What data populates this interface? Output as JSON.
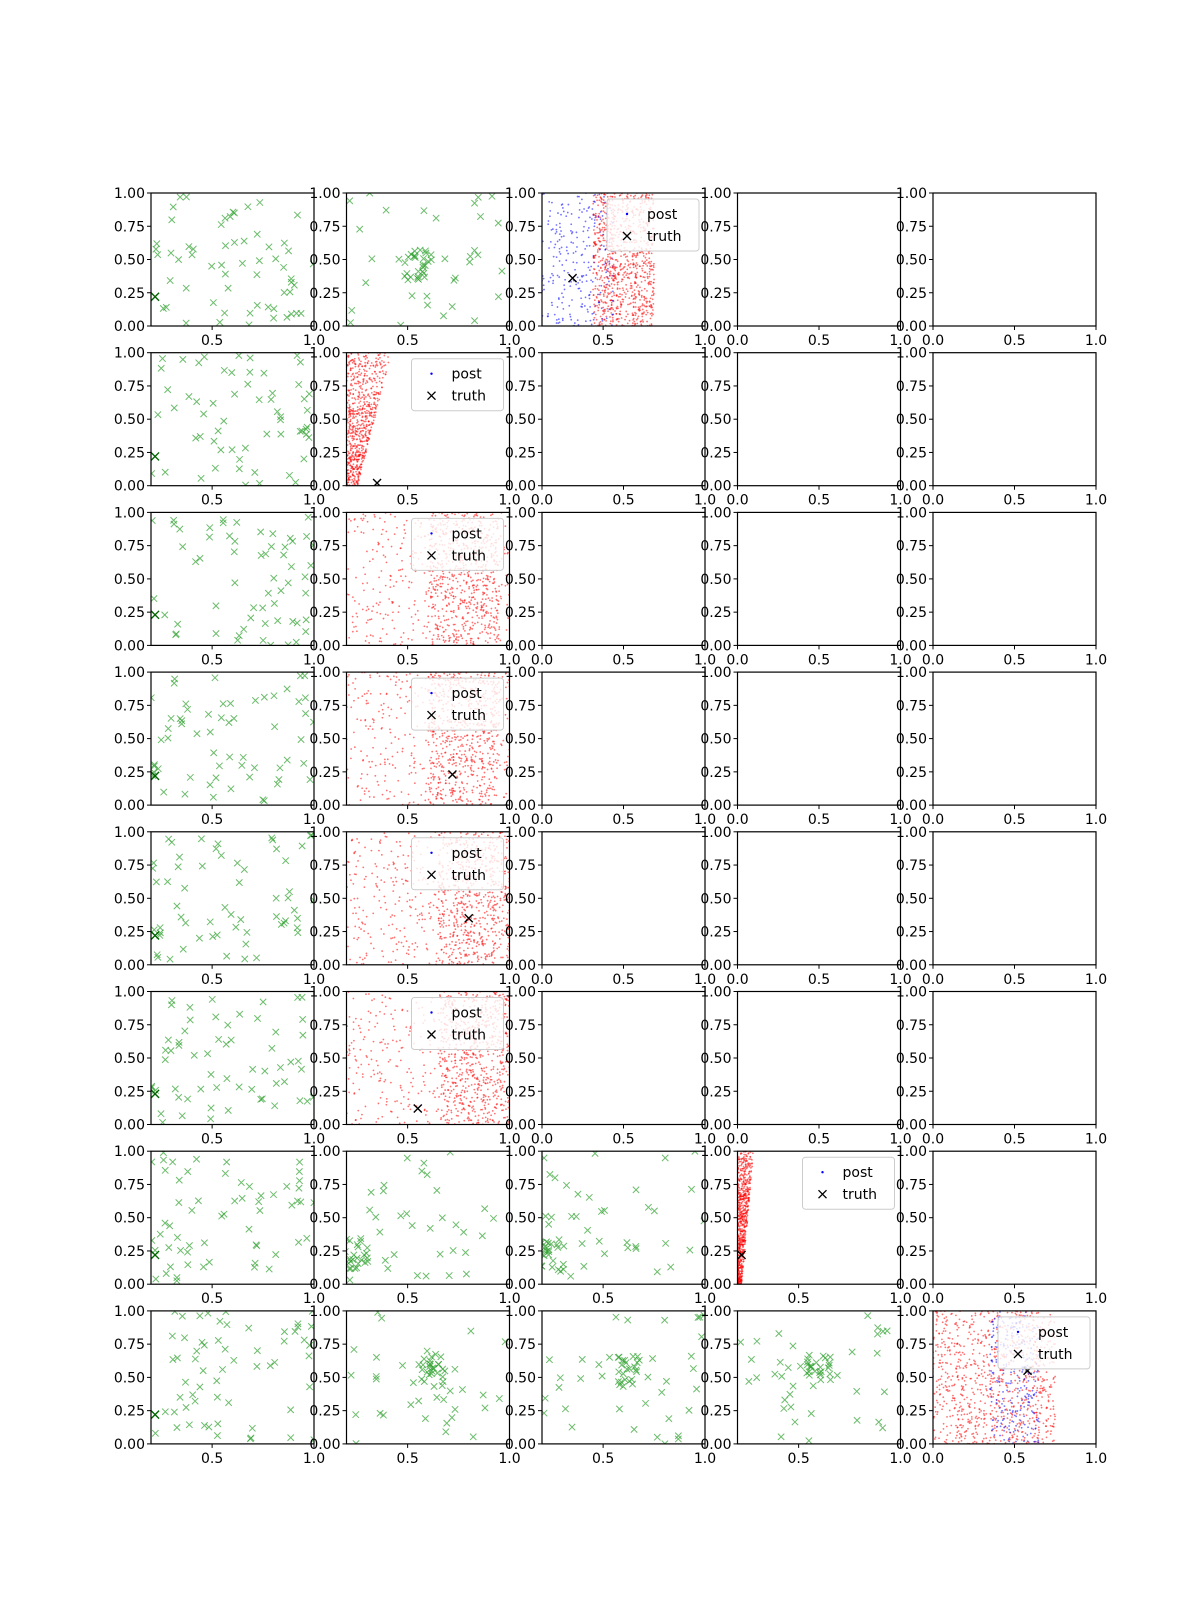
{
  "figure": {
    "rows": 8,
    "cols": 5,
    "colors": {
      "green_marker": "#2ca02c",
      "post_red": "#ff0000",
      "post_blue": "#0000ff",
      "truth": "#000000",
      "axes": "#000000"
    },
    "axis_ticks": {
      "y_labels": [
        "0.00",
        "0.25",
        "0.50",
        "0.75",
        "1.00"
      ],
      "x_labels_full": [
        "0.0",
        "0.5",
        "1.0"
      ],
      "x_labels_trunc": [
        "0.5",
        "1.0"
      ]
    },
    "legend_labels": {
      "post": "post",
      "truth": "truth"
    }
  },
  "chart_data": {
    "type": "scatter",
    "title": "",
    "xlim": [
      0,
      1
    ],
    "ylim": [
      0,
      1
    ],
    "grid": false,
    "panels": [
      {
        "id": "r0c0",
        "row": 0,
        "col": 0,
        "kind": "points",
        "xlim": [
          0.2,
          1.0
        ],
        "truth": [
          0.22,
          0.22
        ],
        "seed": 101
      },
      {
        "id": "r0c1",
        "row": 0,
        "col": 1,
        "kind": "points",
        "xlim": [
          0.2,
          1.0
        ],
        "seed": 102,
        "cluster": [
          0.55,
          0.45
        ]
      },
      {
        "id": "r0c2",
        "row": 0,
        "col": 2,
        "kind": "posterior",
        "xlim": [
          0.2,
          1.0
        ],
        "truth": [
          0.35,
          0.36
        ],
        "legend": true,
        "legend_pos": "upper-right",
        "seed": 103,
        "red_range": [
          0.45,
          0.75
        ],
        "blue_range": [
          0.2,
          0.55
        ]
      },
      {
        "id": "r0c3",
        "row": 0,
        "col": 3,
        "kind": "empty",
        "xlim": [
          0,
          1
        ]
      },
      {
        "id": "r0c4",
        "row": 0,
        "col": 4,
        "kind": "empty",
        "xlim": [
          0,
          1
        ]
      },
      {
        "id": "r1c0",
        "row": 1,
        "col": 0,
        "kind": "points",
        "xlim": [
          0.2,
          1.0
        ],
        "truth": [
          0.22,
          0.22
        ],
        "seed": 111
      },
      {
        "id": "r1c1",
        "row": 1,
        "col": 1,
        "kind": "posterior",
        "xlim": [
          0.2,
          1.0
        ],
        "truth": [
          0.35,
          0.02
        ],
        "legend": true,
        "legend_pos": "upper-right",
        "seed": 112,
        "red_range": [
          0.2,
          0.42
        ],
        "band": true
      },
      {
        "id": "r1c2",
        "row": 1,
        "col": 2,
        "kind": "empty",
        "xlim": [
          0,
          1
        ]
      },
      {
        "id": "r1c3",
        "row": 1,
        "col": 3,
        "kind": "empty",
        "xlim": [
          0,
          1
        ]
      },
      {
        "id": "r1c4",
        "row": 1,
        "col": 4,
        "kind": "empty",
        "xlim": [
          0,
          1
        ]
      },
      {
        "id": "r2c0",
        "row": 2,
        "col": 0,
        "kind": "points",
        "xlim": [
          0.2,
          1.0
        ],
        "truth": [
          0.22,
          0.23
        ],
        "seed": 121
      },
      {
        "id": "r2c1",
        "row": 2,
        "col": 1,
        "kind": "posterior",
        "xlim": [
          0.2,
          1.0
        ],
        "legend": true,
        "legend_pos": "upper-right",
        "seed": 122,
        "red_range": [
          0.2,
          1.0
        ],
        "dense": [
          0.6,
          0.95
        ]
      },
      {
        "id": "r2c2",
        "row": 2,
        "col": 2,
        "kind": "empty",
        "xlim": [
          0,
          1
        ]
      },
      {
        "id": "r2c3",
        "row": 2,
        "col": 3,
        "kind": "empty",
        "xlim": [
          0,
          1
        ]
      },
      {
        "id": "r2c4",
        "row": 2,
        "col": 4,
        "kind": "empty",
        "xlim": [
          0,
          1
        ]
      },
      {
        "id": "r3c0",
        "row": 3,
        "col": 0,
        "kind": "points",
        "xlim": [
          0.2,
          1.0
        ],
        "truth": [
          0.22,
          0.22
        ],
        "seed": 131
      },
      {
        "id": "r3c1",
        "row": 3,
        "col": 1,
        "kind": "posterior",
        "xlim": [
          0.2,
          1.0
        ],
        "truth": [
          0.72,
          0.23
        ],
        "legend": true,
        "legend_pos": "upper-right",
        "seed": 132,
        "red_range": [
          0.2,
          1.0
        ],
        "dense": [
          0.6,
          0.95
        ]
      },
      {
        "id": "r3c2",
        "row": 3,
        "col": 2,
        "kind": "empty",
        "xlim": [
          0,
          1
        ]
      },
      {
        "id": "r3c3",
        "row": 3,
        "col": 3,
        "kind": "empty",
        "xlim": [
          0,
          1
        ]
      },
      {
        "id": "r3c4",
        "row": 3,
        "col": 4,
        "kind": "empty",
        "xlim": [
          0,
          1
        ]
      },
      {
        "id": "r4c0",
        "row": 4,
        "col": 0,
        "kind": "points",
        "xlim": [
          0.2,
          1.0
        ],
        "truth": [
          0.22,
          0.22
        ],
        "seed": 141
      },
      {
        "id": "r4c1",
        "row": 4,
        "col": 1,
        "kind": "posterior",
        "xlim": [
          0.2,
          1.0
        ],
        "truth": [
          0.8,
          0.35
        ],
        "legend": true,
        "legend_pos": "upper-right",
        "seed": 142,
        "red_range": [
          0.2,
          1.0
        ],
        "dense": [
          0.65,
          1.0
        ]
      },
      {
        "id": "r4c2",
        "row": 4,
        "col": 2,
        "kind": "empty",
        "xlim": [
          0,
          1
        ]
      },
      {
        "id": "r4c3",
        "row": 4,
        "col": 3,
        "kind": "empty",
        "xlim": [
          0,
          1
        ]
      },
      {
        "id": "r4c4",
        "row": 4,
        "col": 4,
        "kind": "empty",
        "xlim": [
          0,
          1
        ]
      },
      {
        "id": "r5c0",
        "row": 5,
        "col": 0,
        "kind": "points",
        "xlim": [
          0.2,
          1.0
        ],
        "truth": [
          0.22,
          0.23
        ],
        "seed": 151
      },
      {
        "id": "r5c1",
        "row": 5,
        "col": 1,
        "kind": "posterior",
        "xlim": [
          0.2,
          1.0
        ],
        "truth": [
          0.55,
          0.12
        ],
        "legend": true,
        "legend_pos": "upper-right",
        "seed": 152,
        "red_range": [
          0.2,
          1.0
        ],
        "dense": [
          0.65,
          1.0
        ]
      },
      {
        "id": "r5c2",
        "row": 5,
        "col": 2,
        "kind": "empty",
        "xlim": [
          0,
          1
        ]
      },
      {
        "id": "r5c3",
        "row": 5,
        "col": 3,
        "kind": "empty",
        "xlim": [
          0,
          1
        ]
      },
      {
        "id": "r5c4",
        "row": 5,
        "col": 4,
        "kind": "empty",
        "xlim": [
          0,
          1
        ]
      },
      {
        "id": "r6c0",
        "row": 6,
        "col": 0,
        "kind": "points",
        "xlim": [
          0.2,
          1.0
        ],
        "truth": [
          0.22,
          0.22
        ],
        "seed": 161
      },
      {
        "id": "r6c1",
        "row": 6,
        "col": 1,
        "kind": "points",
        "xlim": [
          0.2,
          1.0
        ],
        "seed": 162,
        "cluster": [
          0.24,
          0.22
        ]
      },
      {
        "id": "r6c2",
        "row": 6,
        "col": 2,
        "kind": "points",
        "xlim": [
          0.2,
          1.0
        ],
        "seed": 163,
        "cluster": [
          0.24,
          0.22
        ]
      },
      {
        "id": "r6c3",
        "row": 6,
        "col": 3,
        "kind": "posterior",
        "xlim": [
          0.2,
          1.0
        ],
        "truth": [
          0.22,
          0.22
        ],
        "legend": true,
        "legend_pos": "upper-right",
        "seed": 164,
        "red_range": [
          0.2,
          0.28
        ],
        "band": true
      },
      {
        "id": "r6c4",
        "row": 6,
        "col": 4,
        "kind": "empty",
        "xlim": [
          0,
          1
        ]
      },
      {
        "id": "r7c0",
        "row": 7,
        "col": 0,
        "kind": "points",
        "xlim": [
          0.2,
          1.0
        ],
        "truth": [
          0.22,
          0.22
        ],
        "seed": 171
      },
      {
        "id": "r7c1",
        "row": 7,
        "col": 1,
        "kind": "points",
        "xlim": [
          0.2,
          1.0
        ],
        "seed": 172,
        "cluster": [
          0.62,
          0.58
        ]
      },
      {
        "id": "r7c2",
        "row": 7,
        "col": 2,
        "kind": "points",
        "xlim": [
          0.2,
          1.0
        ],
        "seed": 173,
        "cluster": [
          0.6,
          0.55
        ]
      },
      {
        "id": "r7c3",
        "row": 7,
        "col": 3,
        "kind": "points",
        "xlim": [
          0.2,
          1.0
        ],
        "seed": 174,
        "cluster": [
          0.6,
          0.55
        ]
      },
      {
        "id": "r7c4",
        "row": 7,
        "col": 4,
        "kind": "posterior",
        "xlim": [
          0.0,
          1.0
        ],
        "truth": [
          0.58,
          0.55
        ],
        "legend": true,
        "legend_pos": "upper-right",
        "seed": 175,
        "red_range": [
          0.0,
          0.75
        ],
        "blue_range": [
          0.35,
          0.65
        ]
      }
    ]
  }
}
